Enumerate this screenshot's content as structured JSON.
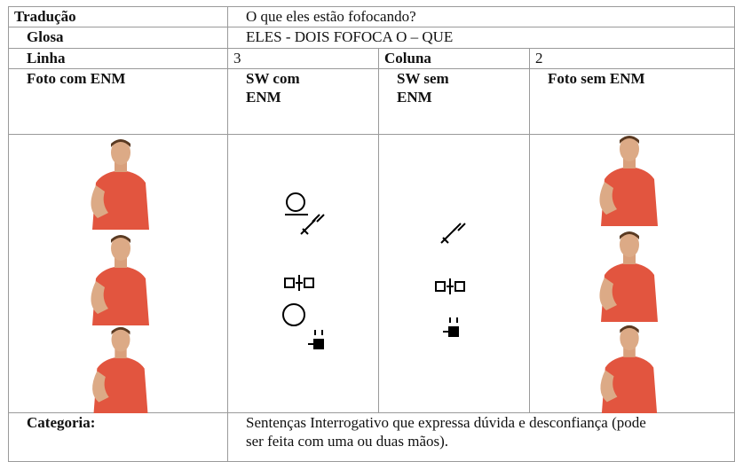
{
  "table": {
    "rows": [
      [
        "Tradução",
        "O que eles estão fofocando?"
      ],
      [
        "Glosa",
        "ELES - DOIS FOFOCA O – QUE"
      ],
      [
        "Linha",
        "3",
        "Coluna",
        "2"
      ],
      [
        "Foto com ENM",
        "SW com ENM",
        "SW sem ENM",
        "Foto sem ENM"
      ],
      [
        "Categoria:",
        "Sentenças Interrogativo que expressa dúvida e desconfiança (pode ser feita com uma ou duas mãos)."
      ]
    ]
  }
}
